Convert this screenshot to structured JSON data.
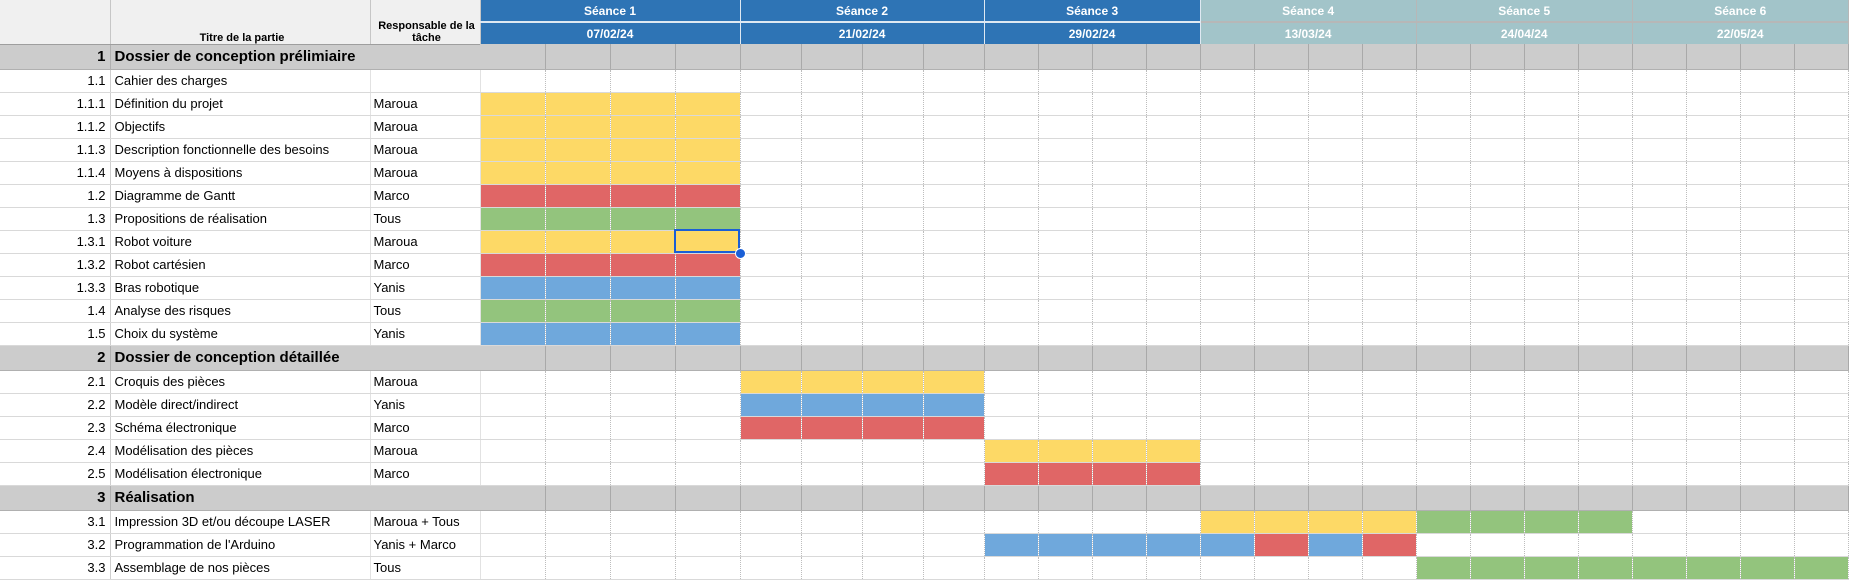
{
  "headers": {
    "title_col": "Titre de la partie",
    "resp_col": "Responsable de la tâche"
  },
  "colors": {
    "yellow": "#fdd966",
    "red": "#e06666",
    "green": "#93c47d",
    "blue": "#6fa8dc",
    "header_blue": "#2e74b5",
    "header_teal": "#a2c4c9",
    "section_gray": "#cccccc"
  },
  "sessions": [
    {
      "label": "Séance 1",
      "date": "07/02/24",
      "style": "blue"
    },
    {
      "label": "Séance 2",
      "date": "21/02/24",
      "style": "blue"
    },
    {
      "label": "Séance 3",
      "date": "29/02/24",
      "style": "blue"
    },
    {
      "label": "Séance 4",
      "date": "13/03/24",
      "style": "teal"
    },
    {
      "label": "Séance 5",
      "date": "24/04/24",
      "style": "teal"
    },
    {
      "label": "Séance 6",
      "date": "22/05/24",
      "style": "teal"
    }
  ],
  "rows": [
    {
      "num": "1",
      "title": "Dossier de conception prélimiaire",
      "resp": "",
      "section": true,
      "bars": []
    },
    {
      "num": "1.1",
      "title": "Cahier des charges",
      "resp": "",
      "bars": []
    },
    {
      "num": "1.1.1",
      "title": "Définition du projet",
      "resp": "Maroua",
      "bars": [
        "yellow",
        "yellow",
        "yellow",
        "yellow"
      ]
    },
    {
      "num": "1.1.2",
      "title": "Objectifs",
      "resp": "Maroua",
      "bars": [
        "yellow",
        "yellow",
        "yellow",
        "yellow"
      ]
    },
    {
      "num": "1.1.3",
      "title": "Description fonctionnelle des besoins",
      "resp": "Maroua",
      "bars": [
        "yellow",
        "yellow",
        "yellow",
        "yellow"
      ]
    },
    {
      "num": "1.1.4",
      "title": "Moyens à dispositions",
      "resp": "Maroua",
      "bars": [
        "yellow",
        "yellow",
        "yellow",
        "yellow"
      ]
    },
    {
      "num": "1.2",
      "title": "Diagramme de Gantt",
      "resp": "Marco",
      "bars": [
        "red",
        "red",
        "red",
        "red"
      ]
    },
    {
      "num": "1.3",
      "title": "Propositions de réalisation",
      "resp": "Tous",
      "bars": [
        "green",
        "green",
        "green",
        "green"
      ]
    },
    {
      "num": "1.3.1",
      "title": "Robot voiture",
      "resp": "Maroua",
      "bars": [
        "yellow",
        "yellow",
        "yellow",
        "yellow"
      ]
    },
    {
      "num": "1.3.2",
      "title": "Robot cartésien",
      "resp": "Marco",
      "bars": [
        "red",
        "red",
        "red",
        "red"
      ]
    },
    {
      "num": "1.3.3",
      "title": "Bras robotique",
      "resp": "Yanis",
      "bars": [
        "blue",
        "blue",
        "blue",
        "blue"
      ]
    },
    {
      "num": "1.4",
      "title": "Analyse des risques",
      "resp": "Tous",
      "bars": [
        "green",
        "green",
        "green",
        "green"
      ]
    },
    {
      "num": "1.5",
      "title": "Choix du système",
      "resp": "Yanis",
      "bars": [
        "blue",
        "blue",
        "blue",
        "blue"
      ]
    },
    {
      "num": "2",
      "title": "Dossier de conception détaillée",
      "resp": "",
      "section": true,
      "bars": []
    },
    {
      "num": "2.1",
      "title": "Croquis des pièces",
      "resp": "Maroua",
      "bars": [
        "",
        "",
        "",
        "",
        "yellow",
        "yellow",
        "yellow",
        "yellow"
      ]
    },
    {
      "num": "2.2",
      "title": "Modèle direct/indirect",
      "resp": "Yanis",
      "bars": [
        "",
        "",
        "",
        "",
        "blue",
        "blue",
        "blue",
        "blue"
      ]
    },
    {
      "num": "2.3",
      "title": "Schéma électronique",
      "resp": "Marco",
      "bars": [
        "",
        "",
        "",
        "",
        "red",
        "red",
        "red",
        "red"
      ]
    },
    {
      "num": "2.4",
      "title": "Modélisation des pièces",
      "resp": "Maroua",
      "bars": [
        "",
        "",
        "",
        "",
        "",
        "",
        "",
        "",
        "yellow",
        "yellow",
        "yellow",
        "yellow"
      ]
    },
    {
      "num": "2.5",
      "title": "Modélisation électronique",
      "resp": "Marco",
      "bars": [
        "",
        "",
        "",
        "",
        "",
        "",
        "",
        "",
        "red",
        "red",
        "red",
        "red"
      ]
    },
    {
      "num": "3",
      "title": "Réalisation",
      "resp": "",
      "section": true,
      "bars": []
    },
    {
      "num": "3.1",
      "title": "Impression 3D et/ou découpe LASER",
      "resp": "Maroua + Tous",
      "bars": [
        "",
        "",
        "",
        "",
        "",
        "",
        "",
        "",
        "",
        "",
        "",
        "",
        "yellow",
        "yellow",
        "yellow",
        "yellow",
        "green",
        "green",
        "green",
        "green"
      ]
    },
    {
      "num": "3.2",
      "title": "Programmation de l'Arduino",
      "resp": "Yanis + Marco",
      "bars": [
        "",
        "",
        "",
        "",
        "",
        "",
        "",
        "",
        "blue",
        "blue",
        "blue",
        "blue",
        "blue",
        "red",
        "blue",
        "red"
      ]
    },
    {
      "num": "3.3",
      "title": "Assemblage de nos pièces",
      "resp": "Tous",
      "bars": [
        "",
        "",
        "",
        "",
        "",
        "",
        "",
        "",
        "",
        "",
        "",
        "",
        "",
        "",
        "",
        "",
        "green",
        "green",
        "green",
        "green",
        "green",
        "green",
        "green",
        "green"
      ]
    }
  ],
  "selection": {
    "row": "1.3.1",
    "session": "Séance 1",
    "sub_column": 4
  }
}
